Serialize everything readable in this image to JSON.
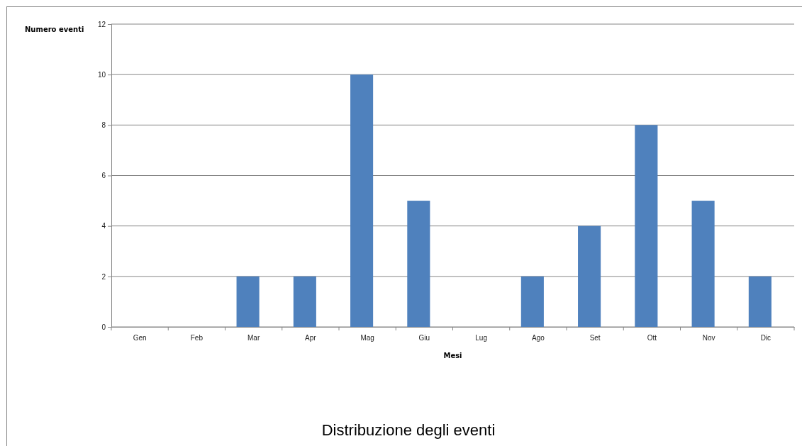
{
  "chart_data": {
    "type": "bar",
    "title": "Distribuzione degli eventi",
    "xlabel": "Mesi",
    "ylabel": "Numero eventi",
    "categories": [
      "Gen",
      "Feb",
      "Mar",
      "Apr",
      "Mag",
      "Giu",
      "Lug",
      "Ago",
      "Set",
      "Ott",
      "Nov",
      "Dic"
    ],
    "values": [
      0,
      0,
      2,
      2,
      10,
      5,
      0,
      2,
      4,
      8,
      5,
      2
    ],
    "color": "#4f81bd",
    "ylim": [
      0,
      12
    ],
    "yticks": [
      0,
      2,
      4,
      6,
      8,
      10,
      12
    ],
    "grid": "y"
  }
}
